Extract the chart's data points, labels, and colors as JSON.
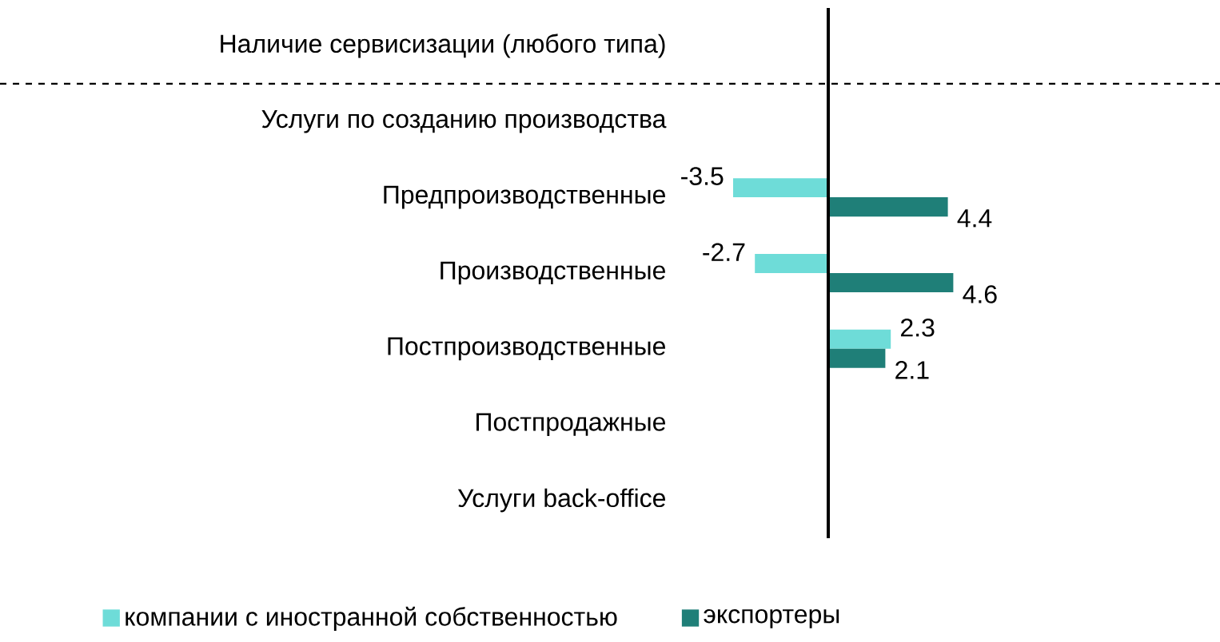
{
  "chart_data": {
    "type": "bar",
    "orientation": "horizontal",
    "categories": [
      "Наличие сервисизации (любого типа)",
      "Услуги по созданию производства",
      "Предпроизводственные",
      "Производственные",
      "Постпроизводственные",
      "Постпродажные",
      "Услуги back-office"
    ],
    "series": [
      {
        "name": "компании с иностранной собственностью",
        "color": "#6edcd8",
        "values": [
          null,
          null,
          -3.5,
          -2.7,
          2.3,
          null,
          null
        ],
        "value_labels": [
          null,
          null,
          "-3.5",
          "-2.7",
          "2.3",
          null,
          null
        ]
      },
      {
        "name": "экспортеры",
        "color": "#1f7f78",
        "values": [
          null,
          null,
          4.4,
          4.6,
          2.1,
          null,
          null
        ],
        "value_labels": [
          null,
          null,
          "4.4",
          "4.6",
          "2.1",
          null,
          null
        ]
      }
    ],
    "tick_labels": "y",
    "legend": "bottom"
  }
}
